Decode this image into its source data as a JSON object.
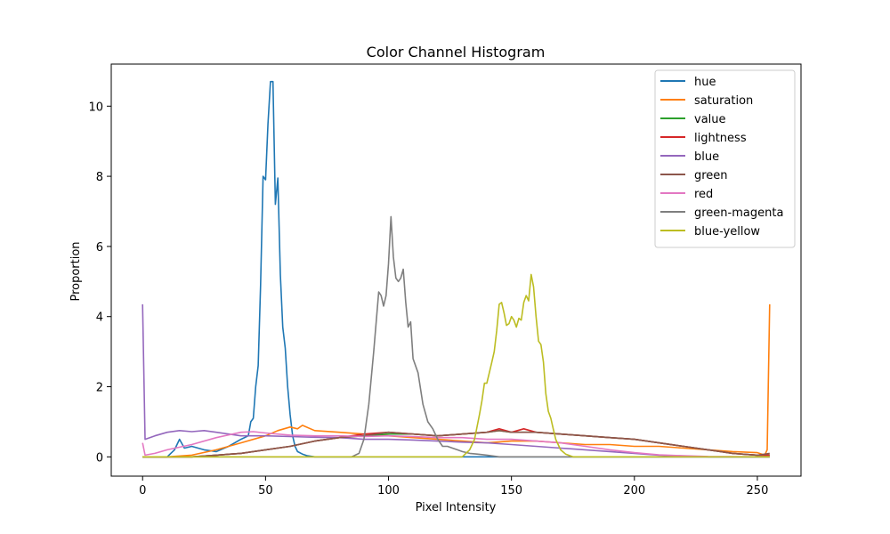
{
  "chart_data": {
    "type": "line",
    "title": "Color Channel Histogram",
    "xlabel": "Pixel Intensity",
    "ylabel": "Proportion",
    "xlim": [
      -12.75,
      267.75
    ],
    "ylim": [
      -0.55,
      11.2
    ],
    "xticks": [
      0,
      50,
      100,
      150,
      200,
      250
    ],
    "yticks": [
      0,
      2,
      4,
      6,
      8,
      10
    ],
    "grid": false,
    "legend_position": "top-right",
    "series": [
      {
        "name": "hue",
        "color": "#1f77b4",
        "points": [
          [
            0,
            0
          ],
          [
            10,
            0
          ],
          [
            13,
            0.2
          ],
          [
            15,
            0.5
          ],
          [
            17,
            0.25
          ],
          [
            20,
            0.3
          ],
          [
            25,
            0.2
          ],
          [
            30,
            0.15
          ],
          [
            35,
            0.3
          ],
          [
            40,
            0.5
          ],
          [
            43,
            0.6
          ],
          [
            44,
            1.0
          ],
          [
            45,
            1.1
          ],
          [
            46,
            2.0
          ],
          [
            47,
            2.6
          ],
          [
            48,
            4.9
          ],
          [
            49,
            8.0
          ],
          [
            50,
            7.9
          ],
          [
            51,
            9.5
          ],
          [
            52,
            10.7
          ],
          [
            53,
            10.7
          ],
          [
            54,
            7.2
          ],
          [
            55,
            7.95
          ],
          [
            56,
            5.2
          ],
          [
            57,
            3.7
          ],
          [
            58,
            3.1
          ],
          [
            59,
            2.0
          ],
          [
            60,
            1.2
          ],
          [
            61,
            0.6
          ],
          [
            62,
            0.3
          ],
          [
            63,
            0.15
          ],
          [
            65,
            0.08
          ],
          [
            67,
            0.03
          ],
          [
            70,
            0
          ],
          [
            255,
            0
          ]
        ]
      },
      {
        "name": "saturation",
        "color": "#ff7f0e",
        "points": [
          [
            0,
            0
          ],
          [
            10,
            0
          ],
          [
            20,
            0.05
          ],
          [
            30,
            0.2
          ],
          [
            40,
            0.4
          ],
          [
            50,
            0.6
          ],
          [
            55,
            0.75
          ],
          [
            60,
            0.85
          ],
          [
            63,
            0.8
          ],
          [
            65,
            0.9
          ],
          [
            70,
            0.75
          ],
          [
            80,
            0.7
          ],
          [
            90,
            0.65
          ],
          [
            100,
            0.6
          ],
          [
            110,
            0.55
          ],
          [
            120,
            0.5
          ],
          [
            130,
            0.45
          ],
          [
            140,
            0.4
          ],
          [
            150,
            0.45
          ],
          [
            160,
            0.45
          ],
          [
            170,
            0.4
          ],
          [
            180,
            0.35
          ],
          [
            190,
            0.35
          ],
          [
            200,
            0.3
          ],
          [
            210,
            0.3
          ],
          [
            220,
            0.25
          ],
          [
            230,
            0.2
          ],
          [
            240,
            0.15
          ],
          [
            250,
            0.12
          ],
          [
            253,
            0.05
          ],
          [
            254,
            0.2
          ],
          [
            255,
            4.35
          ]
        ]
      },
      {
        "name": "value",
        "color": "#2ca02c",
        "points": [
          [
            0,
            0
          ],
          [
            20,
            0
          ],
          [
            30,
            0.05
          ],
          [
            40,
            0.1
          ],
          [
            50,
            0.2
          ],
          [
            60,
            0.3
          ],
          [
            70,
            0.45
          ],
          [
            80,
            0.55
          ],
          [
            90,
            0.6
          ],
          [
            100,
            0.65
          ],
          [
            110,
            0.65
          ],
          [
            120,
            0.6
          ],
          [
            130,
            0.65
          ],
          [
            140,
            0.7
          ],
          [
            145,
            0.75
          ],
          [
            150,
            0.7
          ],
          [
            160,
            0.7
          ],
          [
            170,
            0.65
          ],
          [
            180,
            0.6
          ],
          [
            190,
            0.55
          ],
          [
            200,
            0.5
          ],
          [
            210,
            0.4
          ],
          [
            220,
            0.3
          ],
          [
            230,
            0.2
          ],
          [
            240,
            0.1
          ],
          [
            250,
            0.05
          ],
          [
            255,
            0.05
          ]
        ]
      },
      {
        "name": "lightness",
        "color": "#d62728",
        "points": [
          [
            0,
            0
          ],
          [
            20,
            0
          ],
          [
            30,
            0.05
          ],
          [
            40,
            0.1
          ],
          [
            50,
            0.2
          ],
          [
            60,
            0.3
          ],
          [
            70,
            0.45
          ],
          [
            80,
            0.55
          ],
          [
            90,
            0.65
          ],
          [
            100,
            0.7
          ],
          [
            110,
            0.65
          ],
          [
            120,
            0.6
          ],
          [
            130,
            0.65
          ],
          [
            140,
            0.7
          ],
          [
            145,
            0.8
          ],
          [
            150,
            0.7
          ],
          [
            155,
            0.8
          ],
          [
            160,
            0.7
          ],
          [
            170,
            0.65
          ],
          [
            180,
            0.6
          ],
          [
            190,
            0.55
          ],
          [
            200,
            0.5
          ],
          [
            210,
            0.4
          ],
          [
            220,
            0.3
          ],
          [
            230,
            0.2
          ],
          [
            240,
            0.1
          ],
          [
            250,
            0.05
          ],
          [
            255,
            0.05
          ]
        ]
      },
      {
        "name": "blue",
        "color": "#9467bd",
        "points": [
          [
            0,
            4.35
          ],
          [
            1,
            0.5
          ],
          [
            5,
            0.6
          ],
          [
            10,
            0.7
          ],
          [
            15,
            0.75
          ],
          [
            20,
            0.72
          ],
          [
            25,
            0.75
          ],
          [
            30,
            0.7
          ],
          [
            35,
            0.65
          ],
          [
            40,
            0.6
          ],
          [
            50,
            0.6
          ],
          [
            60,
            0.58
          ],
          [
            70,
            0.56
          ],
          [
            80,
            0.55
          ],
          [
            90,
            0.5
          ],
          [
            100,
            0.5
          ],
          [
            110,
            0.48
          ],
          [
            120,
            0.45
          ],
          [
            130,
            0.42
          ],
          [
            140,
            0.4
          ],
          [
            150,
            0.35
          ],
          [
            160,
            0.3
          ],
          [
            170,
            0.25
          ],
          [
            180,
            0.2
          ],
          [
            190,
            0.15
          ],
          [
            200,
            0.1
          ],
          [
            210,
            0.05
          ],
          [
            220,
            0.02
          ],
          [
            230,
            0
          ],
          [
            255,
            0
          ]
        ]
      },
      {
        "name": "green",
        "color": "#8c564b",
        "points": [
          [
            0,
            0
          ],
          [
            20,
            0
          ],
          [
            30,
            0.05
          ],
          [
            40,
            0.1
          ],
          [
            50,
            0.2
          ],
          [
            60,
            0.3
          ],
          [
            70,
            0.45
          ],
          [
            80,
            0.55
          ],
          [
            90,
            0.6
          ],
          [
            100,
            0.7
          ],
          [
            110,
            0.65
          ],
          [
            120,
            0.6
          ],
          [
            130,
            0.65
          ],
          [
            140,
            0.7
          ],
          [
            145,
            0.75
          ],
          [
            150,
            0.7
          ],
          [
            160,
            0.7
          ],
          [
            170,
            0.65
          ],
          [
            180,
            0.6
          ],
          [
            190,
            0.55
          ],
          [
            200,
            0.5
          ],
          [
            210,
            0.4
          ],
          [
            220,
            0.3
          ],
          [
            230,
            0.2
          ],
          [
            240,
            0.1
          ],
          [
            250,
            0.05
          ],
          [
            255,
            0.1
          ]
        ]
      },
      {
        "name": "red",
        "color": "#e377c2",
        "points": [
          [
            0,
            0.4
          ],
          [
            1,
            0.05
          ],
          [
            5,
            0.1
          ],
          [
            10,
            0.2
          ],
          [
            20,
            0.35
          ],
          [
            30,
            0.55
          ],
          [
            40,
            0.7
          ],
          [
            45,
            0.72
          ],
          [
            50,
            0.68
          ],
          [
            60,
            0.62
          ],
          [
            70,
            0.6
          ],
          [
            80,
            0.6
          ],
          [
            90,
            0.58
          ],
          [
            100,
            0.6
          ],
          [
            110,
            0.58
          ],
          [
            120,
            0.55
          ],
          [
            130,
            0.55
          ],
          [
            140,
            0.5
          ],
          [
            150,
            0.5
          ],
          [
            160,
            0.45
          ],
          [
            170,
            0.4
          ],
          [
            180,
            0.3
          ],
          [
            190,
            0.2
          ],
          [
            200,
            0.12
          ],
          [
            210,
            0.06
          ],
          [
            220,
            0.03
          ],
          [
            230,
            0.01
          ],
          [
            255,
            0
          ]
        ]
      },
      {
        "name": "green-magenta",
        "color": "#7f7f7f",
        "points": [
          [
            0,
            0
          ],
          [
            85,
            0
          ],
          [
            88,
            0.1
          ],
          [
            90,
            0.5
          ],
          [
            92,
            1.5
          ],
          [
            94,
            3.0
          ],
          [
            96,
            4.7
          ],
          [
            97,
            4.6
          ],
          [
            98,
            4.3
          ],
          [
            99,
            4.6
          ],
          [
            100,
            5.5
          ],
          [
            101,
            6.85
          ],
          [
            102,
            5.7
          ],
          [
            103,
            5.1
          ],
          [
            104,
            5.0
          ],
          [
            105,
            5.1
          ],
          [
            106,
            5.35
          ],
          [
            107,
            4.4
          ],
          [
            108,
            3.7
          ],
          [
            109,
            3.85
          ],
          [
            110,
            2.8
          ],
          [
            112,
            2.4
          ],
          [
            114,
            1.5
          ],
          [
            116,
            1.0
          ],
          [
            118,
            0.8
          ],
          [
            120,
            0.5
          ],
          [
            122,
            0.3
          ],
          [
            124,
            0.3
          ],
          [
            126,
            0.25
          ],
          [
            128,
            0.2
          ],
          [
            130,
            0.15
          ],
          [
            133,
            0.1
          ],
          [
            136,
            0.08
          ],
          [
            140,
            0.05
          ],
          [
            145,
            0
          ],
          [
            255,
            0
          ]
        ]
      },
      {
        "name": "blue-yellow",
        "color": "#bcbd22",
        "points": [
          [
            0,
            0
          ],
          [
            130,
            0
          ],
          [
            133,
            0.2
          ],
          [
            135,
            0.5
          ],
          [
            137,
            1.2
          ],
          [
            138,
            1.6
          ],
          [
            139,
            2.1
          ],
          [
            140,
            2.1
          ],
          [
            141,
            2.4
          ],
          [
            142,
            2.7
          ],
          [
            143,
            3.0
          ],
          [
            144,
            3.6
          ],
          [
            145,
            4.35
          ],
          [
            146,
            4.4
          ],
          [
            147,
            4.1
          ],
          [
            148,
            3.75
          ],
          [
            149,
            3.8
          ],
          [
            150,
            4.0
          ],
          [
            151,
            3.9
          ],
          [
            152,
            3.7
          ],
          [
            153,
            3.95
          ],
          [
            154,
            3.9
          ],
          [
            155,
            4.4
          ],
          [
            156,
            4.6
          ],
          [
            157,
            4.45
          ],
          [
            158,
            5.2
          ],
          [
            159,
            4.85
          ],
          [
            160,
            4.0
          ],
          [
            161,
            3.3
          ],
          [
            162,
            3.2
          ],
          [
            163,
            2.7
          ],
          [
            164,
            1.8
          ],
          [
            165,
            1.3
          ],
          [
            166,
            1.1
          ],
          [
            167,
            0.8
          ],
          [
            168,
            0.5
          ],
          [
            170,
            0.2
          ],
          [
            172,
            0.08
          ],
          [
            175,
            0
          ],
          [
            255,
            0
          ]
        ]
      }
    ]
  }
}
